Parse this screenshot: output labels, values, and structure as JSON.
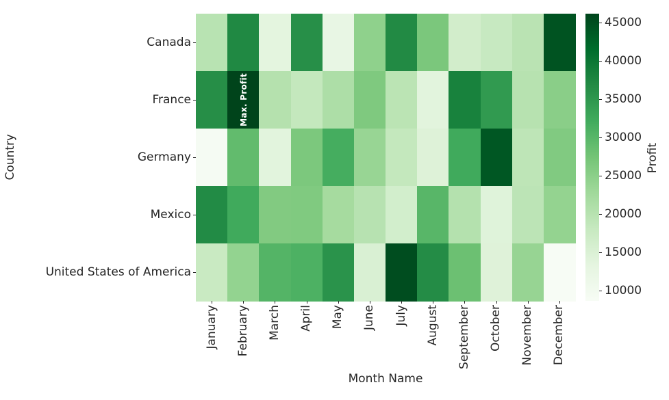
{
  "chart_data": {
    "type": "heatmap",
    "xlabel": "Month Name",
    "ylabel": "Country",
    "columns": [
      "January",
      "February",
      "March",
      "April",
      "May",
      "June",
      "July",
      "August",
      "September",
      "October",
      "November",
      "December"
    ],
    "rows": [
      "Canada",
      "France",
      "Germany",
      "Mexico",
      "United States of America"
    ],
    "values": [
      [
        19900,
        37200,
        13500,
        36200,
        12500,
        24600,
        37000,
        26700,
        16400,
        18000,
        19700,
        44500
      ],
      [
        36400,
        46200,
        20300,
        18500,
        21300,
        26300,
        19600,
        13800,
        38300,
        34700,
        20100,
        25200
      ],
      [
        9200,
        29100,
        13900,
        26600,
        31800,
        23700,
        18400,
        14500,
        32300,
        44000,
        19200,
        26100
      ],
      [
        36900,
        32300,
        26000,
        26200,
        22200,
        20000,
        16300,
        30000,
        20400,
        14300,
        19400,
        24100
      ],
      [
        17800,
        24200,
        30400,
        31000,
        35700,
        15300,
        45200,
        36700,
        28200,
        14400,
        23800,
        8700
      ]
    ],
    "vmin": 8700,
    "vmax": 46200,
    "colormap": {
      "name": "Greens",
      "anchors": [
        "#f7fcf5",
        "#e5f5e0",
        "#c7e9c0",
        "#a1d99b",
        "#74c476",
        "#41ab5d",
        "#238b45",
        "#006d2c",
        "#00441b"
      ]
    },
    "annotation": {
      "row": 1,
      "col": 1,
      "text": "Max. Profit",
      "color": "#ffffff"
    },
    "colorbar": {
      "label": "Profit",
      "ticks": [
        "45000",
        "40000",
        "35000",
        "30000",
        "25000",
        "20000",
        "15000",
        "10000"
      ],
      "tick_values": [
        45000,
        40000,
        35000,
        30000,
        25000,
        20000,
        15000,
        10000
      ]
    },
    "legend_position": "right-colorbar",
    "grid_lines": "off",
    "text_color": "#262626"
  }
}
